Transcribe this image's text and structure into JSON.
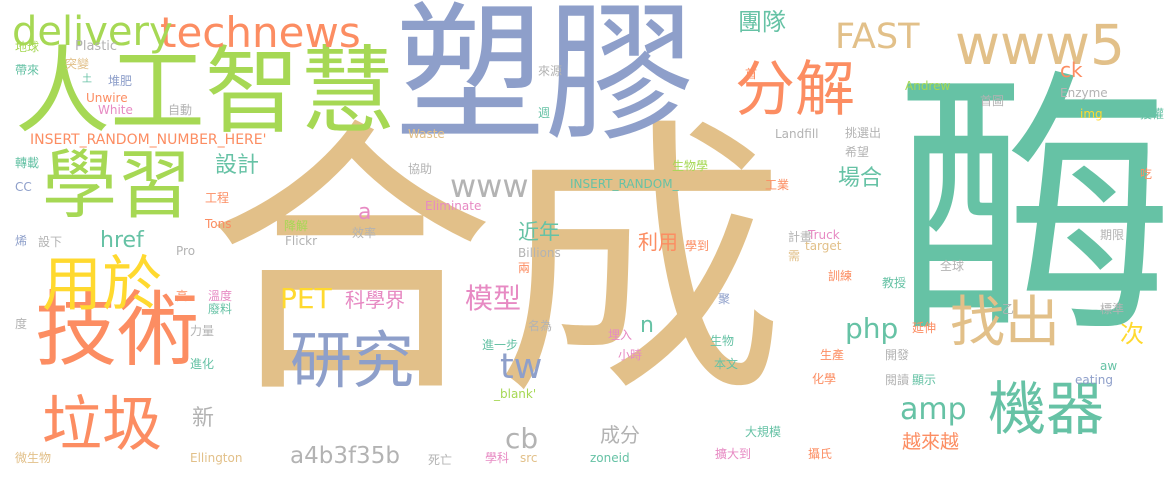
{
  "palette": {
    "tan": "#e2c089",
    "blue": "#8e9fca",
    "green": "#66c2a5",
    "lime": "#a6d854",
    "orange": "#fc8d62",
    "yellow": "#ffd92f",
    "pink": "#e78ac3",
    "gray": "#b3b3b3"
  },
  "words": [
    {
      "text": "合成",
      "color": "tan"
    },
    {
      "text": "塑膠",
      "color": "blue"
    },
    {
      "text": "酶",
      "color": "green"
    },
    {
      "text": "人工智慧",
      "color": "lime"
    },
    {
      "text": "技術",
      "color": "orange"
    },
    {
      "text": "學習",
      "color": "lime"
    },
    {
      "text": "研究",
      "color": "blue"
    },
    {
      "text": "機器",
      "color": "green"
    },
    {
      "text": "分解",
      "color": "orange"
    },
    {
      "text": "找出",
      "color": "tan"
    },
    {
      "text": "用於",
      "color": "yellow"
    },
    {
      "text": "垃圾",
      "color": "orange"
    },
    {
      "text": "www5",
      "color": "tan"
    },
    {
      "text": "technews",
      "color": "orange"
    },
    {
      "text": "delivery",
      "color": "lime"
    },
    {
      "text": "FAST",
      "color": "tan"
    },
    {
      "text": "www",
      "color": "gray"
    },
    {
      "text": "tw",
      "color": "blue"
    },
    {
      "text": "amp",
      "color": "green"
    },
    {
      "text": "php",
      "color": "green"
    },
    {
      "text": "PET",
      "color": "yellow"
    },
    {
      "text": "模型",
      "color": "pink"
    },
    {
      "text": "cb",
      "color": "gray"
    },
    {
      "text": "a4b3f35b",
      "color": "gray"
    },
    {
      "text": "團隊",
      "color": "green"
    },
    {
      "text": "設計",
      "color": "green"
    },
    {
      "text": "場合",
      "color": "green"
    },
    {
      "text": "近年",
      "color": "green"
    },
    {
      "text": "href",
      "color": "green"
    },
    {
      "text": "科學界",
      "color": "pink"
    },
    {
      "text": "利用",
      "color": "orange"
    },
    {
      "text": "越來越",
      "color": "orange"
    },
    {
      "text": "成分",
      "color": "gray"
    },
    {
      "text": "ck",
      "color": "orange"
    },
    {
      "text": "次",
      "color": "yellow"
    },
    {
      "text": "n",
      "color": "green"
    },
    {
      "text": "a",
      "color": "pink"
    },
    {
      "text": "新",
      "color": "gray"
    },
    {
      "text": "INSERT_RANDOM_NUMBER_HERE'",
      "color": "orange"
    },
    {
      "text": "INSERT_RANDOM_",
      "color": "green"
    },
    {
      "text": "Plastic",
      "color": "gray"
    },
    {
      "text": "地球",
      "color": "lime"
    },
    {
      "text": "帶來",
      "color": "green"
    },
    {
      "text": "突變",
      "color": "tan"
    },
    {
      "text": "土",
      "color": "green"
    },
    {
      "text": "堆肥",
      "color": "blue"
    },
    {
      "text": "Unwire",
      "color": "orange"
    },
    {
      "text": "White",
      "color": "pink"
    },
    {
      "text": "自動",
      "color": "gray"
    },
    {
      "text": "來源",
      "color": "gray"
    },
    {
      "text": "週",
      "color": "green"
    },
    {
      "text": "首",
      "color": "orange"
    },
    {
      "text": "Andrew",
      "color": "lime"
    },
    {
      "text": "首圖",
      "color": "gray"
    },
    {
      "text": "Enzyme",
      "color": "gray"
    },
    {
      "text": "img",
      "color": "yellow"
    },
    {
      "text": "授權",
      "color": "green"
    },
    {
      "text": "Landfill",
      "color": "gray"
    },
    {
      "text": "挑選出",
      "color": "gray"
    },
    {
      "text": "希望",
      "color": "gray"
    },
    {
      "text": "Waste",
      "color": "tan"
    },
    {
      "text": "轉載",
      "color": "green"
    },
    {
      "text": "協助",
      "color": "gray"
    },
    {
      "text": "生物學",
      "color": "lime"
    },
    {
      "text": "工業",
      "color": "orange"
    },
    {
      "text": "吃",
      "color": "orange"
    },
    {
      "text": "CC",
      "color": "blue"
    },
    {
      "text": "工程",
      "color": "orange"
    },
    {
      "text": "Eliminate",
      "color": "pink"
    },
    {
      "text": "Tons",
      "color": "orange"
    },
    {
      "text": "降解",
      "color": "lime"
    },
    {
      "text": "Truck",
      "color": "pink"
    },
    {
      "text": "target",
      "color": "tan"
    },
    {
      "text": "烯",
      "color": "blue"
    },
    {
      "text": "設下",
      "color": "gray"
    },
    {
      "text": "效率",
      "color": "gray"
    },
    {
      "text": "Pro",
      "color": "gray"
    },
    {
      "text": "Flickr",
      "color": "gray"
    },
    {
      "text": "計畫",
      "color": "gray"
    },
    {
      "text": "學到",
      "color": "orange"
    },
    {
      "text": "期限",
      "color": "gray"
    },
    {
      "text": "Billions",
      "color": "gray"
    },
    {
      "text": "兩",
      "color": "orange"
    },
    {
      "text": "需",
      "color": "tan"
    },
    {
      "text": "全球",
      "color": "gray"
    },
    {
      "text": "高",
      "color": "orange"
    },
    {
      "text": "溫度",
      "color": "pink"
    },
    {
      "text": "訓練",
      "color": "orange"
    },
    {
      "text": "教授",
      "color": "green"
    },
    {
      "text": "廢料",
      "color": "green"
    },
    {
      "text": "聚",
      "color": "blue"
    },
    {
      "text": "乙",
      "color": "gray"
    },
    {
      "text": "度",
      "color": "gray"
    },
    {
      "text": "力量",
      "color": "gray"
    },
    {
      "text": "名為",
      "color": "gray"
    },
    {
      "text": "延伸",
      "color": "orange"
    },
    {
      "text": "標準",
      "color": "gray"
    },
    {
      "text": "埋入",
      "color": "pink"
    },
    {
      "text": "生物",
      "color": "green"
    },
    {
      "text": "生產",
      "color": "orange"
    },
    {
      "text": "進一步",
      "color": "green"
    },
    {
      "text": "開發",
      "color": "gray"
    },
    {
      "text": "進化",
      "color": "green"
    },
    {
      "text": "小時",
      "color": "pink"
    },
    {
      "text": "本文",
      "color": "green"
    },
    {
      "text": "閱讀",
      "color": "gray"
    },
    {
      "text": "顯示",
      "color": "green"
    },
    {
      "text": "化學",
      "color": "orange"
    },
    {
      "text": "aw",
      "color": "green"
    },
    {
      "text": "eating",
      "color": "blue"
    },
    {
      "text": "_blank'",
      "color": "lime"
    },
    {
      "text": "大規模",
      "color": "green"
    },
    {
      "text": "微生物",
      "color": "tan"
    },
    {
      "text": "Ellington",
      "color": "tan"
    },
    {
      "text": "死亡",
      "color": "gray"
    },
    {
      "text": "學科",
      "color": "pink"
    },
    {
      "text": "src",
      "color": "tan"
    },
    {
      "text": "zoneid",
      "color": "green"
    },
    {
      "text": "擴大到",
      "color": "pink"
    },
    {
      "text": "攝氏",
      "color": "orange"
    }
  ]
}
